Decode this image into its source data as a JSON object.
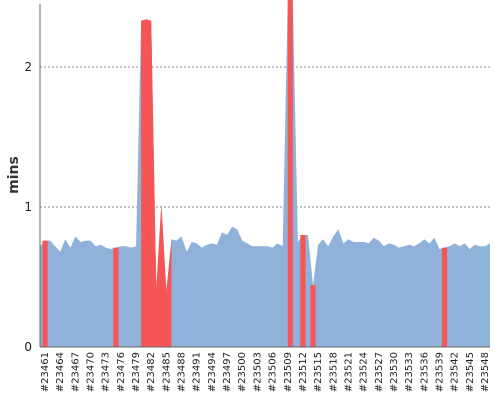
{
  "chart_data": {
    "type": "area",
    "title": "",
    "xlabel": "",
    "ylabel": "mins",
    "ylim": [
      0,
      2.45
    ],
    "yticks": [
      0,
      1,
      2
    ],
    "grid": "horizontal dotted at y ticks",
    "legend": "none",
    "colors": {
      "baseline": "#8fb1da",
      "failed": "#f55555",
      "gridline": "#888888"
    },
    "builds": [
      23460,
      23461,
      23462,
      23463,
      23464,
      23465,
      23466,
      23467,
      23468,
      23469,
      23470,
      23471,
      23472,
      23473,
      23474,
      23475,
      23476,
      23477,
      23478,
      23479,
      23480,
      23481,
      23482,
      23483,
      23484,
      23485,
      23486,
      23487,
      23488,
      23489,
      23490,
      23491,
      23492,
      23493,
      23494,
      23495,
      23496,
      23497,
      23498,
      23499,
      23500,
      23501,
      23502,
      23503,
      23504,
      23505,
      23506,
      23507,
      23508,
      23509,
      23510,
      23511,
      23512,
      23513,
      23514,
      23515,
      23516,
      23517,
      23518,
      23519,
      23520,
      23521,
      23522,
      23523,
      23524,
      23525,
      23526,
      23527,
      23528,
      23529,
      23530,
      23531,
      23532,
      23533,
      23534,
      23535,
      23536,
      23537,
      23538,
      23539,
      23540,
      23541,
      23542,
      23543,
      23544,
      23545,
      23546,
      23547,
      23548,
      23549
    ],
    "x_tick_labels": [
      "#23461",
      "#23464",
      "#23467",
      "#23470",
      "#23473",
      "#23476",
      "#23479",
      "#23482",
      "#23485",
      "#23488",
      "#23491",
      "#23494",
      "#23497",
      "#23500",
      "#23503",
      "#23506",
      "#23509",
      "#23512",
      "#23515",
      "#23518",
      "#23521",
      "#23524",
      "#23527",
      "#23530",
      "#23533",
      "#23536",
      "#23539",
      "#23542",
      "#23545",
      "#23548"
    ],
    "values": [
      0.72,
      0.76,
      0.76,
      0.72,
      0.68,
      0.77,
      0.71,
      0.79,
      0.75,
      0.76,
      0.76,
      0.72,
      0.73,
      0.71,
      0.7,
      0.71,
      0.72,
      0.72,
      0.71,
      0.72,
      2.33,
      2.34,
      2.33,
      0.42,
      1.02,
      0.4,
      0.77,
      0.76,
      0.79,
      0.68,
      0.75,
      0.74,
      0.71,
      0.73,
      0.74,
      0.73,
      0.82,
      0.8,
      0.86,
      0.84,
      0.76,
      0.74,
      0.72,
      0.72,
      0.72,
      0.72,
      0.71,
      0.74,
      0.72,
      2.48,
      2.48,
      0.75,
      0.8,
      0.8,
      0.44,
      0.73,
      0.77,
      0.72,
      0.79,
      0.84,
      0.74,
      0.77,
      0.75,
      0.75,
      0.75,
      0.74,
      0.78,
      0.76,
      0.72,
      0.74,
      0.73,
      0.71,
      0.72,
      0.73,
      0.72,
      0.74,
      0.77,
      0.74,
      0.78,
      0.7,
      0.71,
      0.72,
      0.74,
      0.72,
      0.74,
      0.7,
      0.73,
      0.72,
      0.72,
      0.74
    ],
    "failed_builds": [
      23461,
      23475,
      23480,
      23481,
      23482,
      23483,
      23484,
      23485,
      23486,
      23509,
      23510,
      23512,
      23514,
      23540
    ]
  }
}
